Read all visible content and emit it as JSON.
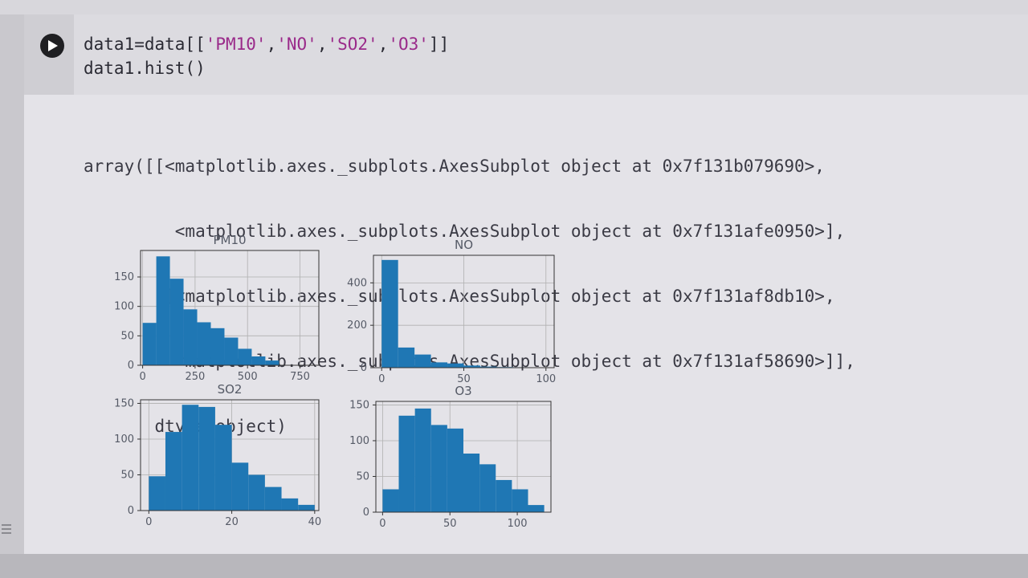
{
  "cell": {
    "code_lines": [
      {
        "prefix": "data1=data[[",
        "strings": [
          "'PM10'",
          "'NO'",
          "'SO2'",
          "'O3'"
        ],
        "suffix": "]]"
      },
      {
        "text": "data1.hist()"
      }
    ],
    "output_lines": [
      "array([[<matplotlib.axes._subplots.AxesSubplot object at 0x7f131b079690>,",
      "         <matplotlib.axes._subplots.AxesSubplot object at 0x7f131afe0950>],",
      "        [<matplotlib.axes._subplots.AxesSubplot object at 0x7f131af8db10>,",
      "         <matplotlib.axes._subplots.AxesSubplot object at 0x7f131af58690>]],",
      "       dtype=object)"
    ]
  },
  "colors": {
    "bar": "#1f77b4",
    "grid": "#b0b0b0",
    "axes": "#333333"
  },
  "icons": {
    "run": "play-icon"
  },
  "chart_data": [
    {
      "type": "bar",
      "title": "PM10",
      "bin_edges": [
        0,
        65,
        130,
        195,
        260,
        325,
        390,
        455,
        520,
        585,
        650
      ],
      "values": [
        72,
        185,
        147,
        95,
        73,
        63,
        47,
        28,
        15,
        8
      ],
      "xlim": [
        -10,
        840
      ],
      "ylim": [
        0,
        195
      ],
      "xticks": [
        0,
        250,
        500,
        750
      ],
      "yticks": [
        0,
        50,
        100,
        150
      ],
      "grid": true
    },
    {
      "type": "bar",
      "title": "NO",
      "bin_edges": [
        0,
        10,
        20,
        30,
        40,
        50,
        60,
        70,
        80,
        90,
        100
      ],
      "values": [
        508,
        95,
        62,
        25,
        20,
        10,
        5,
        3,
        2,
        1
      ],
      "xlim": [
        -5,
        105
      ],
      "ylim": [
        0,
        530
      ],
      "xticks": [
        0,
        50,
        100
      ],
      "yticks": [
        0,
        200,
        400
      ],
      "grid": true
    },
    {
      "type": "bar",
      "title": "SO2",
      "bin_edges": [
        0,
        4,
        8,
        12,
        16,
        20,
        24,
        28,
        32,
        36,
        40
      ],
      "values": [
        48,
        110,
        148,
        145,
        120,
        67,
        50,
        33,
        17,
        8
      ],
      "xlim": [
        -2,
        41
      ],
      "ylim": [
        0,
        155
      ],
      "xticks": [
        0,
        20,
        40
      ],
      "yticks": [
        0,
        50,
        100,
        150
      ],
      "grid": true
    },
    {
      "type": "bar",
      "title": "O3",
      "bin_edges": [
        0,
        12,
        24,
        36,
        48,
        60,
        72,
        84,
        96,
        108,
        120
      ],
      "values": [
        32,
        135,
        145,
        122,
        117,
        82,
        67,
        45,
        32,
        10
      ],
      "xlim": [
        -5,
        125
      ],
      "ylim": [
        0,
        155
      ],
      "xticks": [
        0,
        50,
        100
      ],
      "yticks": [
        0,
        50,
        100,
        150
      ],
      "grid": true
    }
  ]
}
